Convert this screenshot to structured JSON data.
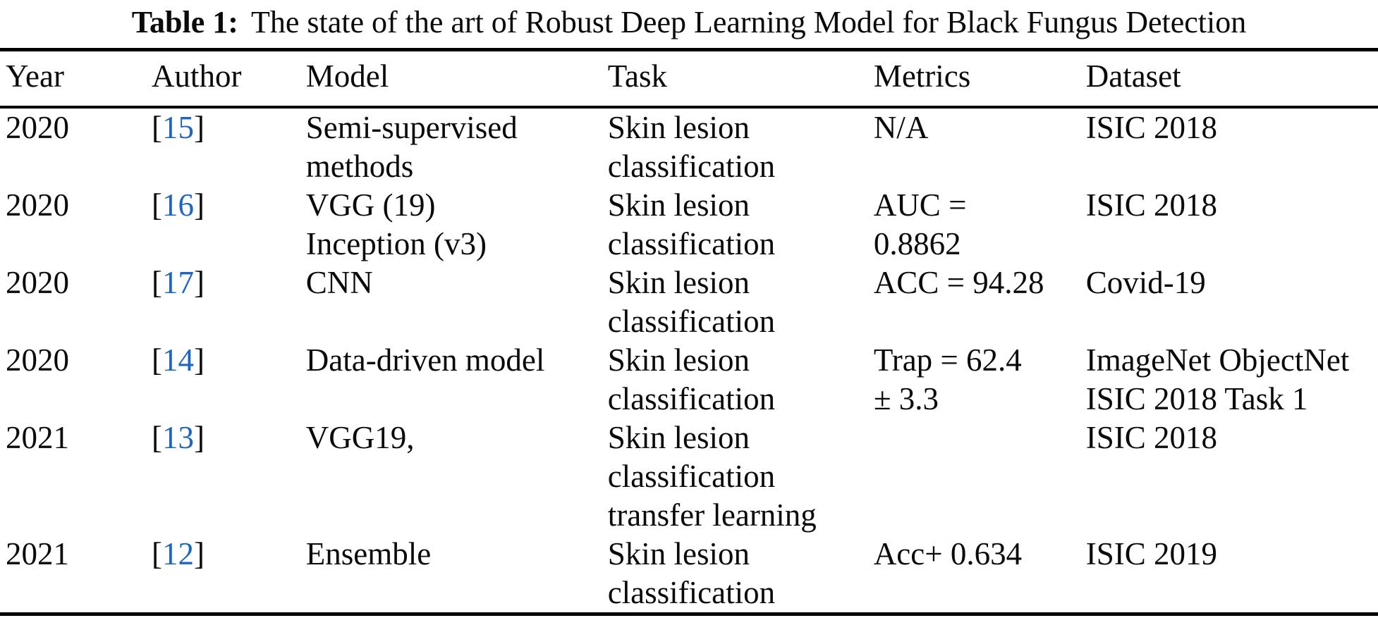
{
  "caption": {
    "label": "Table 1:",
    "text": "The state of the art of Robust Deep Learning Model for Black Fungus Detection"
  },
  "citation": {
    "open": "[",
    "close": "]"
  },
  "colors": {
    "citation_link": "#1b66c2",
    "text": "#0a0a0a",
    "rule": "#000000",
    "background": "#ffffff"
  },
  "table": {
    "headers": [
      "Year",
      "Author",
      "Model",
      "Task",
      "Metrics",
      "Dataset"
    ],
    "rows": [
      {
        "year": "2020",
        "ref": "15",
        "model": "Semi-supervised\nmethods",
        "task": "Skin lesion\nclassification",
        "metrics": "N/A",
        "dataset": "ISIC 2018"
      },
      {
        "year": "2020",
        "ref": "16",
        "model": "VGG (19)\nInception (v3)",
        "task": "Skin lesion\nclassification",
        "metrics": "AUC =\n0.8862",
        "dataset": "ISIC 2018"
      },
      {
        "year": "2020",
        "ref": "17",
        "model": "CNN",
        "task": "Skin lesion\nclassification",
        "metrics": "ACC = 94.28",
        "dataset": "Covid-19"
      },
      {
        "year": "2020",
        "ref": "14",
        "model": "Data-driven model",
        "task": "Skin lesion\nclassification",
        "metrics": "Trap = 62.4\n± 3.3",
        "dataset": "ImageNet ObjectNet\nISIC 2018 Task 1"
      },
      {
        "year": "2021",
        "ref": "13",
        "model": "VGG19,",
        "task": "Skin lesion\nclassification\ntransfer learning",
        "metrics": "",
        "dataset": "ISIC 2018"
      },
      {
        "year": "2021",
        "ref": "12",
        "model": "Ensemble",
        "task": "Skin lesion\nclassification",
        "metrics": "Acc+ 0.634",
        "dataset": "ISIC 2019"
      }
    ]
  }
}
